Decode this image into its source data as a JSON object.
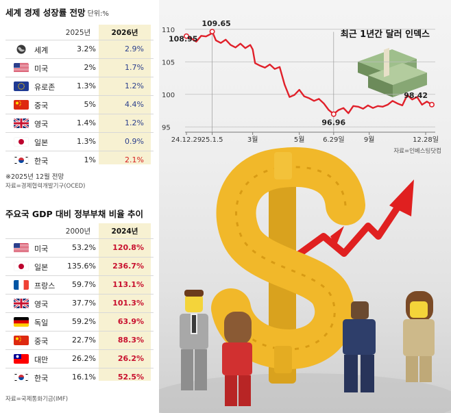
{
  "growth": {
    "title": "세계 경제 성장률 전망",
    "unit": "단위:%",
    "col_a": "2025년",
    "col_b": "2026년",
    "rows": [
      {
        "name": "세계",
        "flag": "globe",
        "a": "3.2%",
        "b": "2.9%"
      },
      {
        "name": "미국",
        "flag": "us",
        "a": "2%",
        "b": "1.7%"
      },
      {
        "name": "유로존",
        "flag": "eu",
        "a": "1.3%",
        "b": "1.2%"
      },
      {
        "name": "중국",
        "flag": "cn",
        "a": "5%",
        "b": "4.4%"
      },
      {
        "name": "영국",
        "flag": "uk",
        "a": "1.4%",
        "b": "1.2%"
      },
      {
        "name": "일본",
        "flag": "jp",
        "a": "1.3%",
        "b": "0.9%"
      },
      {
        "name": "한국",
        "flag": "kr",
        "a": "1%",
        "b": "2.1%"
      }
    ],
    "note": "※2025년 12월 전망",
    "source": "자료=경제협력개발기구(OCED)"
  },
  "debt": {
    "title": "주요국 GDP 대비 정부부채 비율 추이",
    "col_a": "2000년",
    "col_b": "2024년",
    "rows": [
      {
        "name": "미국",
        "flag": "us",
        "a": "53.2%",
        "b": "120.8%"
      },
      {
        "name": "일본",
        "flag": "jp",
        "a": "135.6%",
        "b": "236.7%"
      },
      {
        "name": "프랑스",
        "flag": "fr",
        "a": "59.7%",
        "b": "113.1%"
      },
      {
        "name": "영국",
        "flag": "uk",
        "a": "37.7%",
        "b": "101.3%"
      },
      {
        "name": "독일",
        "flag": "de",
        "a": "59.2%",
        "b": "63.9%"
      },
      {
        "name": "중국",
        "flag": "cn",
        "a": "22.7%",
        "b": "88.3%"
      },
      {
        "name": "대만",
        "flag": "tw",
        "a": "26.2%",
        "b": "26.2%"
      },
      {
        "name": "한국",
        "flag": "kr",
        "a": "16.1%",
        "b": "52.5%"
      }
    ],
    "source": "자료=국제통화기금(IMF)"
  },
  "chart_data": {
    "type": "line",
    "title": "최근 1년간 달러 인덱스",
    "source": "자료=인베스팅닷컴",
    "x_ticks": [
      "24.12.29",
      "25.1.5",
      "3월",
      "5월",
      "6.29일",
      "9월",
      "12.28일"
    ],
    "x_tick_pos": [
      0,
      0.105,
      0.27,
      0.46,
      0.6,
      0.745,
      0.975
    ],
    "y_ticks": [
      110,
      105,
      100,
      95
    ],
    "ylim": [
      94.5,
      110.5
    ],
    "annotations": [
      {
        "label": "108.95",
        "x": 0.0,
        "y": 108.95
      },
      {
        "label": "109.65",
        "x": 0.105,
        "y": 109.65
      },
      {
        "label": "96.96",
        "x": 0.6,
        "y": 96.96
      },
      {
        "label": "98.42",
        "x": 1.0,
        "y": 98.42
      }
    ],
    "series": [
      {
        "x": [
          0,
          0.02,
          0.04,
          0.06,
          0.08,
          0.1,
          0.105,
          0.12,
          0.14,
          0.16,
          0.18,
          0.2,
          0.22,
          0.24,
          0.26,
          0.27,
          0.28,
          0.3,
          0.32,
          0.34,
          0.36,
          0.38,
          0.4,
          0.42,
          0.44,
          0.46,
          0.48,
          0.5,
          0.52,
          0.54,
          0.56,
          0.58,
          0.6,
          0.62,
          0.64,
          0.66,
          0.68,
          0.7,
          0.72,
          0.74,
          0.76,
          0.78,
          0.8,
          0.82,
          0.84,
          0.86,
          0.88,
          0.9,
          0.92,
          0.94,
          0.96,
          0.98,
          1.0
        ],
        "y": [
          108.95,
          108.6,
          108.1,
          109.0,
          108.9,
          109.3,
          109.65,
          108.3,
          107.9,
          108.4,
          107.6,
          107.2,
          107.8,
          107.1,
          107.6,
          106.9,
          104.8,
          104.4,
          104.1,
          104.6,
          103.9,
          104.2,
          101.5,
          99.6,
          99.9,
          100.7,
          99.7,
          99.4,
          99.0,
          99.3,
          98.6,
          97.6,
          96.96,
          97.6,
          97.9,
          97.1,
          98.2,
          98.1,
          97.8,
          98.3,
          97.9,
          98.2,
          98.1,
          98.4,
          99.0,
          98.6,
          98.3,
          99.9,
          99.2,
          99.6,
          98.4,
          98.9,
          98.42
        ]
      }
    ]
  }
}
